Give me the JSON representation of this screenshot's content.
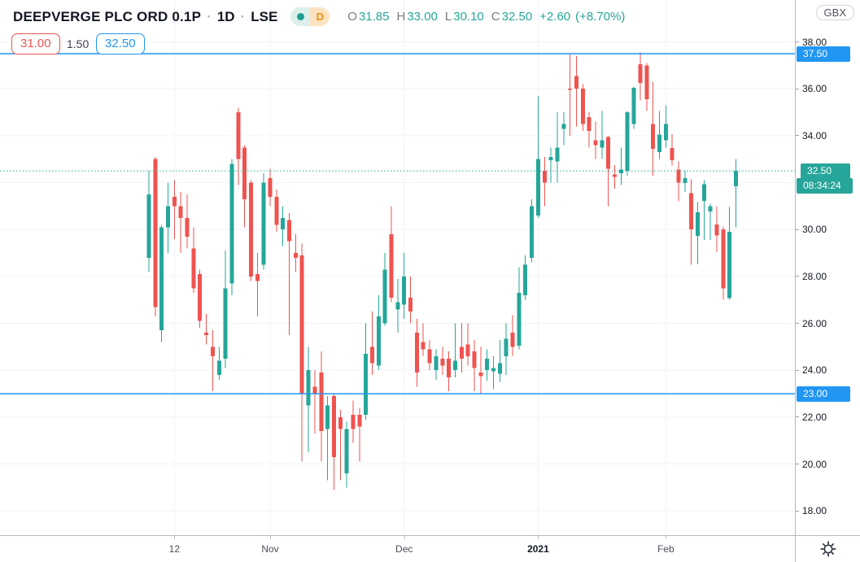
{
  "header": {
    "symbol": "DEEPVERGE PLC ORD 0.1P",
    "sep1": "·",
    "interval": "1D",
    "sep2": "·",
    "exchange": "LSE",
    "status_pill": {
      "market_dot": "open",
      "data_mode": "D"
    },
    "ohlc": {
      "o_label": "O",
      "o": "31.85",
      "h_label": "H",
      "h": "33.00",
      "l_label": "L",
      "l": "30.10",
      "c_label": "C",
      "c": "32.50",
      "change": "+2.60",
      "change_pct": "(+8.70%)"
    }
  },
  "tool_labels": {
    "lower_price": "31.00",
    "range": "1.50",
    "upper_price": "32.50"
  },
  "price_axis": {
    "currency_badge": "GBX",
    "plain_ticks": [
      38,
      36,
      34,
      30,
      28,
      26,
      24,
      22,
      20,
      18
    ],
    "level_labels": [
      {
        "price": 37.5,
        "text": "37.50"
      },
      {
        "price": 23.0,
        "text": "23.00"
      }
    ],
    "last_price_label": {
      "price": 32.5,
      "text": "32.50",
      "countdown": "08:34:24"
    }
  },
  "time_axis": {
    "ticks": [
      {
        "index": 4,
        "label": "12",
        "bold": false
      },
      {
        "index": 19,
        "label": "Nov",
        "bold": false
      },
      {
        "index": 40,
        "label": "Dec",
        "bold": false
      },
      {
        "index": 61,
        "label": "2021",
        "bold": true
      },
      {
        "index": 81,
        "label": "Feb",
        "bold": false
      }
    ]
  },
  "colors": {
    "up": "#26a69a",
    "down": "#ef5350",
    "level_line": "#2196f3",
    "last_price_line": "#26a69a",
    "grid": "#f0f3fa",
    "axis_text": "#131722"
  },
  "chart_data": {
    "type": "candlestick",
    "title": "DEEPVERGE PLC ORD 0.1P",
    "exchange": "LSE",
    "interval": "1D",
    "currency": "GBX",
    "legend": "single candlestick series, up=#26a69a down=#ef5350",
    "grid": true,
    "y_visible_range": [
      17.0,
      39.8
    ],
    "y_gridline_step": 2,
    "horizontal_levels": [
      37.5,
      23.0
    ],
    "last_close": 32.5,
    "prev_close": 29.9,
    "last_bar_countdown": "08:34:24",
    "dates": [
      "2020-10-06",
      "2020-10-07",
      "2020-10-08",
      "2020-10-09",
      "2020-10-12",
      "2020-10-13",
      "2020-10-14",
      "2020-10-15",
      "2020-10-16",
      "2020-10-19",
      "2020-10-20",
      "2020-10-21",
      "2020-10-22",
      "2020-10-23",
      "2020-10-26",
      "2020-10-27",
      "2020-10-28",
      "2020-10-29",
      "2020-10-30",
      "2020-11-02",
      "2020-11-03",
      "2020-11-04",
      "2020-11-05",
      "2020-11-06",
      "2020-11-09",
      "2020-11-10",
      "2020-11-11",
      "2020-11-12",
      "2020-11-13",
      "2020-11-16",
      "2020-11-17",
      "2020-11-18",
      "2020-11-19",
      "2020-11-20",
      "2020-11-23",
      "2020-11-24",
      "2020-11-25",
      "2020-11-26",
      "2020-11-27",
      "2020-11-30",
      "2020-12-01",
      "2020-12-02",
      "2020-12-03",
      "2020-12-04",
      "2020-12-07",
      "2020-12-08",
      "2020-12-09",
      "2020-12-10",
      "2020-12-11",
      "2020-12-14",
      "2020-12-15",
      "2020-12-16",
      "2020-12-17",
      "2020-12-18",
      "2020-12-21",
      "2020-12-22",
      "2020-12-23",
      "2020-12-24",
      "2020-12-29",
      "2020-12-30",
      "2020-12-31",
      "2021-01-04",
      "2021-01-05",
      "2021-01-06",
      "2021-01-07",
      "2021-01-08",
      "2021-01-11",
      "2021-01-12",
      "2021-01-13",
      "2021-01-14",
      "2021-01-15",
      "2021-01-18",
      "2021-01-19",
      "2021-01-20",
      "2021-01-21",
      "2021-01-22",
      "2021-01-25",
      "2021-01-26",
      "2021-01-27",
      "2021-01-28",
      "2021-01-29",
      "2021-02-01",
      "2021-02-02",
      "2021-02-03",
      "2021-02-04",
      "2021-02-05",
      "2021-02-08",
      "2021-02-09",
      "2021-02-10",
      "2021-02-11",
      "2021-02-12",
      "2021-02-15",
      "2021-02-16"
    ],
    "ohlc": [
      [
        28.8,
        32.5,
        28.2,
        31.5
      ],
      [
        33.0,
        33.1,
        26.3,
        26.7
      ],
      [
        25.7,
        30.2,
        25.2,
        30.1
      ],
      [
        30.1,
        32.0,
        29.0,
        31.0
      ],
      [
        31.4,
        32.1,
        29.6,
        31.0
      ],
      [
        31.0,
        31.6,
        29.0,
        30.5
      ],
      [
        30.5,
        31.5,
        29.2,
        29.7
      ],
      [
        29.2,
        30.1,
        27.3,
        27.5
      ],
      [
        28.1,
        28.3,
        25.8,
        26.1
      ],
      [
        25.6,
        26.4,
        25.1,
        25.5
      ],
      [
        25.0,
        25.7,
        23.1,
        24.6
      ],
      [
        23.8,
        25.0,
        23.6,
        24.4
      ],
      [
        24.5,
        29.1,
        24.1,
        27.5
      ],
      [
        27.7,
        33.0,
        27.2,
        32.8
      ],
      [
        35.0,
        35.2,
        31.9,
        33.0
      ],
      [
        33.5,
        33.6,
        30.1,
        31.3
      ],
      [
        32.0,
        32.1,
        27.8,
        28.0
      ],
      [
        28.1,
        29.0,
        26.3,
        27.8
      ],
      [
        28.5,
        32.4,
        28.3,
        32.0
      ],
      [
        32.2,
        32.6,
        31.0,
        31.4
      ],
      [
        31.4,
        31.7,
        29.9,
        30.2
      ],
      [
        30.0,
        31.0,
        29.3,
        30.5
      ],
      [
        30.4,
        30.7,
        25.5,
        29.5
      ],
      [
        29.0,
        29.8,
        28.2,
        28.8
      ],
      [
        28.9,
        29.4,
        20.1,
        23.0
      ],
      [
        22.5,
        25.0,
        20.5,
        24.0
      ],
      [
        23.3,
        24.0,
        21.3,
        23.0
      ],
      [
        23.9,
        24.8,
        20.1,
        21.4
      ],
      [
        21.5,
        22.9,
        19.3,
        22.5
      ],
      [
        22.9,
        23.0,
        18.9,
        20.3
      ],
      [
        22.0,
        22.3,
        19.3,
        21.5
      ],
      [
        19.6,
        21.8,
        19.0,
        21.5
      ],
      [
        22.1,
        22.7,
        20.9,
        21.5
      ],
      [
        22.1,
        22.4,
        20.1,
        21.6
      ],
      [
        22.1,
        26.0,
        21.9,
        24.7
      ],
      [
        25.0,
        26.5,
        23.8,
        24.3
      ],
      [
        24.2,
        27.2,
        24.0,
        26.3
      ],
      [
        26.0,
        29.0,
        25.9,
        28.3
      ],
      [
        29.8,
        31.0,
        26.9,
        27.1
      ],
      [
        26.6,
        27.9,
        25.6,
        26.9
      ],
      [
        26.8,
        29.0,
        26.2,
        28.0
      ],
      [
        27.1,
        28.0,
        26.0,
        26.5
      ],
      [
        25.6,
        26.2,
        23.3,
        23.9
      ],
      [
        25.2,
        26.0,
        24.6,
        24.9
      ],
      [
        24.9,
        25.3,
        24.0,
        24.3
      ],
      [
        24.0,
        24.9,
        23.6,
        24.6
      ],
      [
        24.5,
        25.0,
        23.8,
        24.2
      ],
      [
        24.5,
        24.8,
        23.1,
        23.7
      ],
      [
        24.0,
        26.0,
        23.7,
        24.4
      ],
      [
        25.0,
        26.0,
        23.9,
        24.5
      ],
      [
        25.1,
        26.0,
        24.2,
        24.6
      ],
      [
        24.8,
        25.3,
        23.1,
        24.1
      ],
      [
        23.9,
        25.0,
        23.0,
        23.75
      ],
      [
        24.0,
        24.9,
        23.55,
        24.5
      ],
      [
        23.95,
        24.6,
        23.2,
        24.1
      ],
      [
        23.85,
        25.3,
        23.5,
        24.3
      ],
      [
        24.6,
        26.0,
        23.8,
        25.35
      ],
      [
        25.6,
        26.35,
        24.6,
        25.0
      ],
      [
        25.05,
        28.4,
        24.9,
        27.3
      ],
      [
        27.2,
        28.9,
        27.0,
        28.5
      ],
      [
        28.8,
        31.3,
        28.6,
        31.0
      ],
      [
        30.6,
        35.7,
        30.5,
        33.0
      ],
      [
        32.5,
        33.1,
        31.0,
        32.0
      ],
      [
        32.95,
        33.5,
        32.0,
        33.1
      ],
      [
        32.9,
        35.0,
        32.0,
        33.5
      ],
      [
        34.3,
        35.0,
        33.6,
        34.5
      ],
      [
        36.0,
        37.5,
        34.0,
        35.95
      ],
      [
        36.55,
        37.4,
        34.4,
        36.0
      ],
      [
        36.0,
        36.2,
        34.2,
        34.5
      ],
      [
        34.8,
        35.0,
        33.5,
        34.2
      ],
      [
        33.8,
        34.6,
        33.0,
        33.6
      ],
      [
        33.5,
        35.05,
        33.0,
        33.8
      ],
      [
        33.95,
        34.0,
        31.0,
        32.6
      ],
      [
        32.35,
        32.75,
        31.75,
        32.25
      ],
      [
        32.4,
        33.5,
        31.9,
        32.55
      ],
      [
        32.5,
        35.05,
        32.3,
        35.0
      ],
      [
        34.5,
        36.1,
        34.3,
        36.05
      ],
      [
        37.05,
        37.55,
        35.5,
        36.25
      ],
      [
        37.0,
        37.1,
        35.05,
        35.55
      ],
      [
        34.5,
        36.3,
        32.3,
        33.45
      ],
      [
        33.3,
        35.05,
        33.0,
        34.05
      ],
      [
        33.8,
        35.3,
        33.5,
        34.5
      ],
      [
        33.48,
        34.06,
        32.73,
        32.96
      ],
      [
        32.56,
        32.9,
        31.2,
        32.0
      ],
      [
        31.98,
        32.5,
        31.6,
        32.2
      ],
      [
        31.55,
        32.15,
        28.5,
        30.0
      ],
      [
        29.73,
        31.17,
        28.51,
        30.74
      ],
      [
        31.23,
        32.1,
        29.55,
        31.94
      ],
      [
        30.77,
        31.1,
        29.55,
        31.0
      ],
      [
        30.21,
        31.0,
        29.03,
        29.75
      ],
      [
        30.0,
        30.13,
        27.0,
        27.5
      ],
      [
        27.07,
        30.97,
        27.0,
        29.9
      ],
      [
        31.85,
        33.0,
        30.1,
        32.5
      ]
    ]
  }
}
